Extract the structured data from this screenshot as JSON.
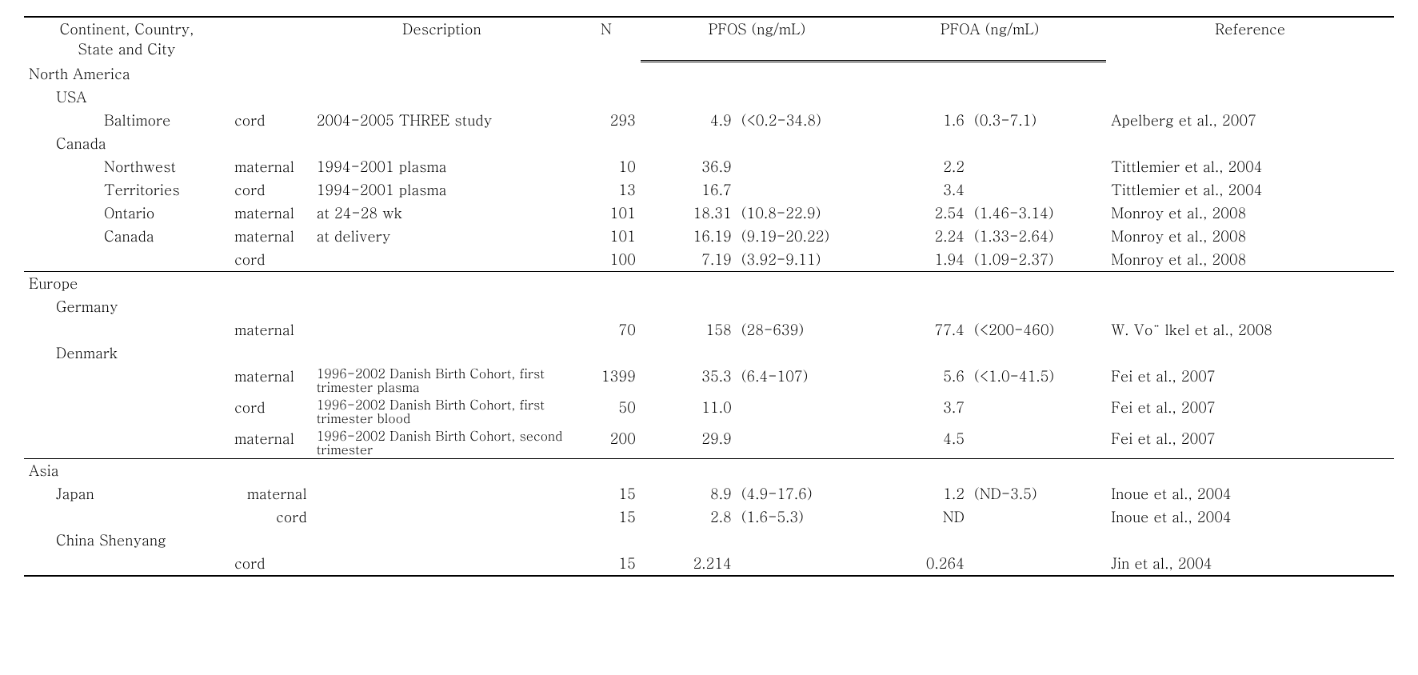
{
  "headers": {
    "location": "Continent, Country,\nState and City",
    "description": "Description",
    "n": "N",
    "pfos": "PFOS (ng/mL)",
    "pfoa": "PFOA (ng/mL)",
    "reference": "Reference"
  },
  "sections": [
    {
      "continent": "North America",
      "groups": [
        {
          "country": "USA",
          "rows": [
            {
              "city": "Baltimore",
              "sample": "cord",
              "desc": "2004-2005 THREE study",
              "n": "293",
              "pfos_v": "4.9",
              "pfos_r": "(<0.2-34.8)",
              "pfoa_v": "1.6",
              "pfoa_r": "(0.3-7.1)",
              "ref": "Apelberg et al., 2007"
            }
          ]
        },
        {
          "country": "Canada",
          "rows": [
            {
              "city": "Northwest",
              "sample": "maternal",
              "desc": "1994-2001 plasma",
              "n": "10",
              "pfos_v": "36.9",
              "pfos_r": "",
              "pfoa_v": "2.2",
              "pfoa_r": "",
              "ref": "Tittlemier et al., 2004"
            },
            {
              "city": "Territories",
              "sample": "cord",
              "desc": "1994-2001 plasma",
              "n": "13",
              "pfos_v": "16.7",
              "pfos_r": "",
              "pfoa_v": "3.4",
              "pfoa_r": "",
              "ref": "Tittlemier et al., 2004"
            },
            {
              "city": "Ontario",
              "sample": "maternal",
              "desc": "at 24-28 wk",
              "n": "101",
              "pfos_v": "18.31",
              "pfos_r": "(10.8-22.9)",
              "pfoa_v": "2.54",
              "pfoa_r": "(1.46-3.14)",
              "ref": "Monroy et al., 2008"
            },
            {
              "city": "Canada",
              "sample": "maternal",
              "desc": "at delivery",
              "n": "101",
              "pfos_v": "16.19",
              "pfos_r": "(9.19-20.22)",
              "pfoa_v": "2.24",
              "pfoa_r": "(1.33-2.64)",
              "ref": "Monroy et al., 2008"
            },
            {
              "city": "",
              "sample": "cord",
              "desc": "",
              "n": "100",
              "pfos_v": "7.19",
              "pfos_r": "(3.92-9.11)",
              "pfoa_v": "1.94",
              "pfoa_r": "(1.09-2.37)",
              "ref": "Monroy et al., 2008"
            }
          ]
        }
      ]
    },
    {
      "continent": "Europe",
      "groups": [
        {
          "country": "Germany",
          "rows": [
            {
              "city": "",
              "sample": "maternal",
              "desc": "",
              "n": "70",
              "pfos_v": "158",
              "pfos_r": "(28-639)",
              "pfoa_v": "77.4",
              "pfoa_r": "(<200-460)",
              "ref": "W. Vo¨ lkel et al., 2008"
            }
          ]
        },
        {
          "country": "Denmark",
          "rows": [
            {
              "city": "",
              "sample": "maternal",
              "desc": "1996-2002 Danish Birth Cohort, first trimester  plasma",
              "desc_small": true,
              "n": "1399",
              "pfos_v": "35.3",
              "pfos_r": "(6.4-107)",
              "pfoa_v": "5.6",
              "pfoa_r": "(<1.0-41.5)",
              "ref": "Fei et al., 2007"
            },
            {
              "city": "",
              "sample": "cord",
              "desc": "1996-2002 Danish Birth Cohort, first trimester  blood",
              "desc_small": true,
              "n": "50",
              "pfos_v": "11.0",
              "pfos_r": "",
              "pfoa_v": "3.7",
              "pfoa_r": "",
              "ref": "Fei et al., 2007"
            },
            {
              "city": "",
              "sample": "maternal",
              "desc": "1996-2002 Danish Birth Cohort, second trimester",
              "desc_small": true,
              "n": "200",
              "pfos_v": "29.9",
              "pfos_r": "",
              "pfoa_v": "4.5",
              "pfoa_r": "",
              "ref": "Fei et al., 2007"
            }
          ]
        }
      ]
    },
    {
      "continent": "Asia",
      "groups": [
        {
          "country": "Japan",
          "inline_rows": true,
          "rows": [
            {
              "city": "",
              "sample": "maternal",
              "desc": "",
              "n": "15",
              "pfos_v": "8.9",
              "pfos_r": "(4.9-17.6)",
              "pfoa_v": "1.2",
              "pfoa_r": "(ND-3.5)",
              "ref": "Inoue et al., 2004"
            },
            {
              "city": "",
              "sample": "cord",
              "desc": "",
              "n": "15",
              "pfos_v": "2.8",
              "pfos_r": "(1.6-5.3)",
              "pfoa_v": "ND",
              "pfoa_r": "",
              "ref": "Inoue et al., 2004"
            }
          ]
        },
        {
          "country": "China Shenyang",
          "rows": [
            {
              "city": "",
              "sample": "cord",
              "desc": "",
              "n": "15",
              "pfos_v": "2.214",
              "pfos_r": "",
              "pfoa_v": "0.264",
              "pfoa_r": "",
              "ref": "Jin et al., 2004"
            }
          ]
        }
      ]
    }
  ]
}
